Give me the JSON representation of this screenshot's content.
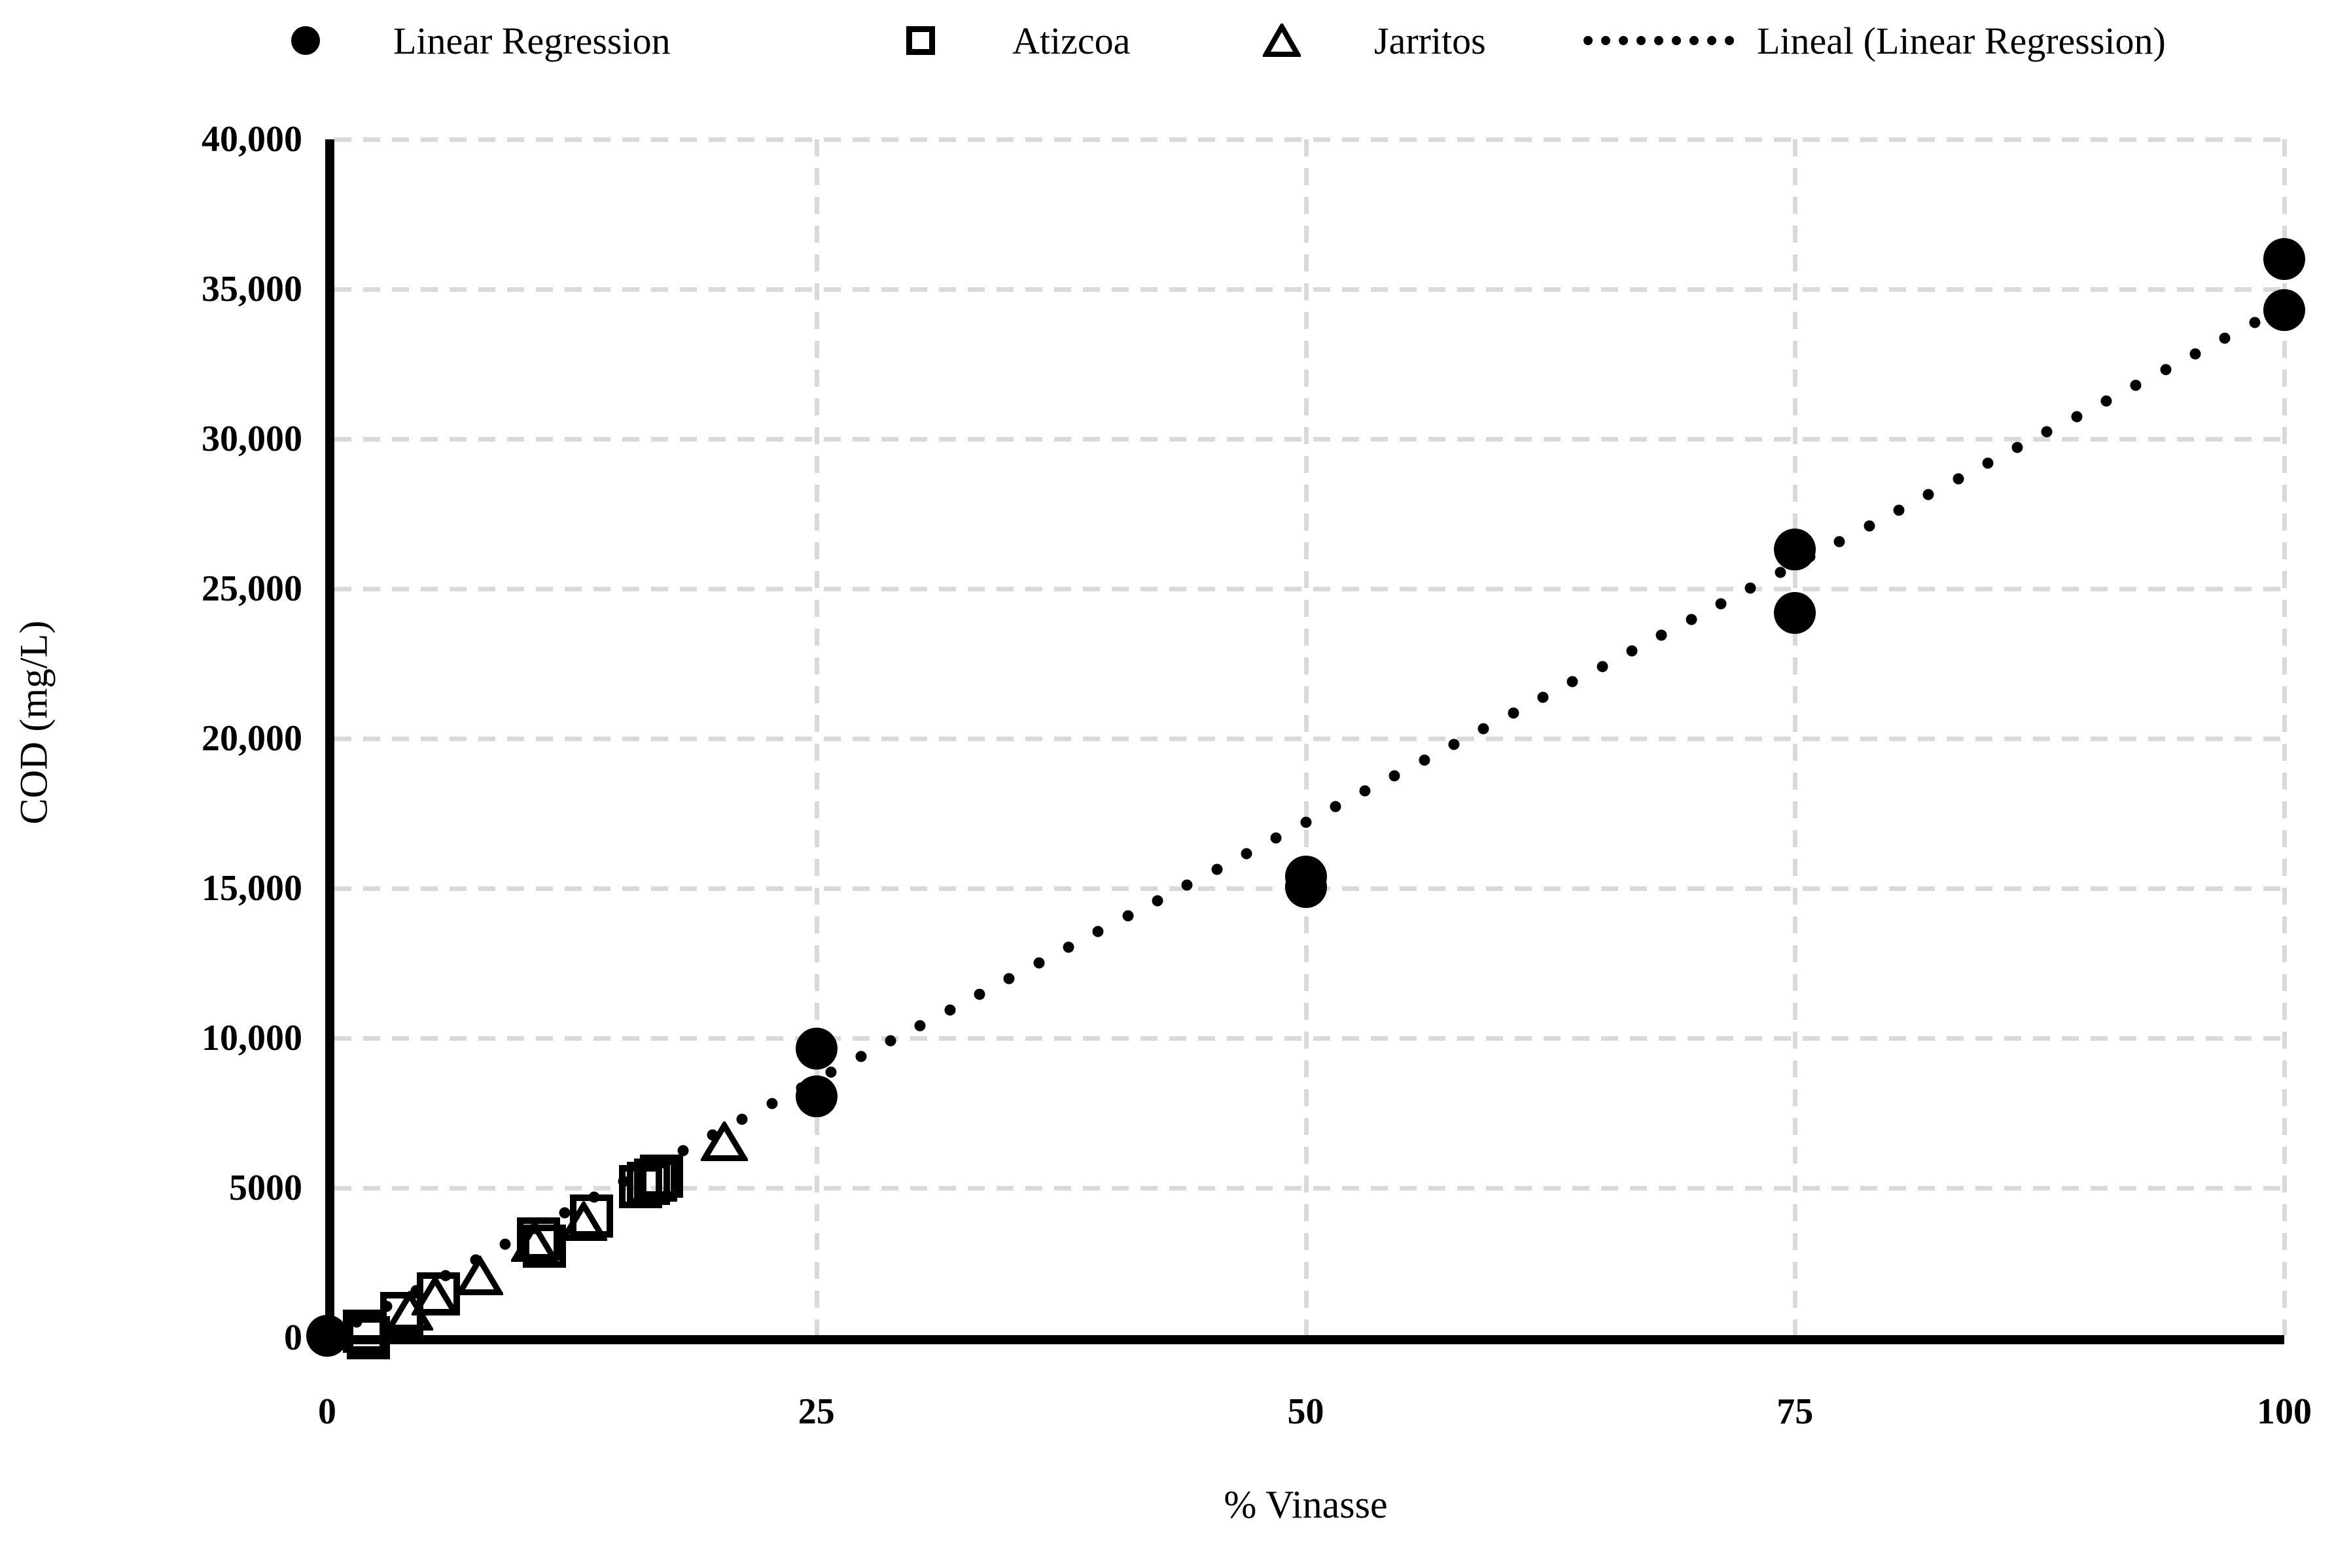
{
  "legend": {
    "items": [
      {
        "label": "Linear Regression",
        "marker": "filled-circle"
      },
      {
        "label": "Atizcoa",
        "marker": "open-square"
      },
      {
        "label": "Jarritos",
        "marker": "open-triangle"
      },
      {
        "label": "Lineal (Linear Regression)",
        "marker": "dotted-line"
      }
    ]
  },
  "chart_data": {
    "type": "scatter",
    "title": "",
    "xlabel": "% Vinasse",
    "ylabel": "COD (mg/L)",
    "xlim": [
      0,
      100
    ],
    "ylim": [
      0,
      40000
    ],
    "x_ticks": [
      0,
      25,
      50,
      75,
      100
    ],
    "x_tick_labels": [
      "0",
      "25",
      "50",
      "75",
      "100"
    ],
    "y_ticks": [
      0,
      5000,
      10000,
      15000,
      20000,
      25000,
      30000,
      35000,
      40000
    ],
    "y_tick_labels": [
      "0",
      "5000",
      "10,000",
      "15,000",
      "20,000",
      "25,000",
      "30,000",
      "35,000",
      "40,000"
    ],
    "grid": true,
    "legend_position": "top",
    "series": [
      {
        "name": "Linear Regression",
        "marker": "filled-circle",
        "points": [
          [
            0,
            60
          ],
          [
            25,
            9650
          ],
          [
            25,
            8050
          ],
          [
            50,
            15400
          ],
          [
            50,
            15050
          ],
          [
            75,
            26300
          ],
          [
            75,
            24200
          ],
          [
            100,
            36000
          ],
          [
            100,
            34300
          ]
        ]
      },
      {
        "name": "Atizcoa",
        "marker": "open-square",
        "points": [
          [
            1.9,
            220
          ],
          [
            2.1,
            0
          ],
          [
            3.8,
            800
          ],
          [
            5.7,
            1470
          ],
          [
            10.8,
            3300
          ],
          [
            11.1,
            3050
          ],
          [
            13.5,
            4060
          ],
          [
            16.0,
            5050
          ],
          [
            16.4,
            5160
          ],
          [
            16.8,
            5270
          ],
          [
            17.1,
            5400
          ]
        ]
      },
      {
        "name": "Jarritos",
        "marker": "open-triangle",
        "points": [
          [
            4.2,
            820
          ],
          [
            5.5,
            1330
          ],
          [
            7.8,
            2000
          ],
          [
            10.6,
            3120
          ],
          [
            13.1,
            3820
          ],
          [
            20.3,
            6480
          ]
        ]
      }
    ],
    "trendline": {
      "name": "Lineal (Linear Regression)",
      "style": "dotted",
      "from": [
        0,
        0
      ],
      "to": [
        100,
        34400
      ]
    }
  },
  "colors": {
    "marker": "#000000",
    "gridline": "#d9d9d9",
    "axis": "#000000",
    "background": "#ffffff"
  }
}
